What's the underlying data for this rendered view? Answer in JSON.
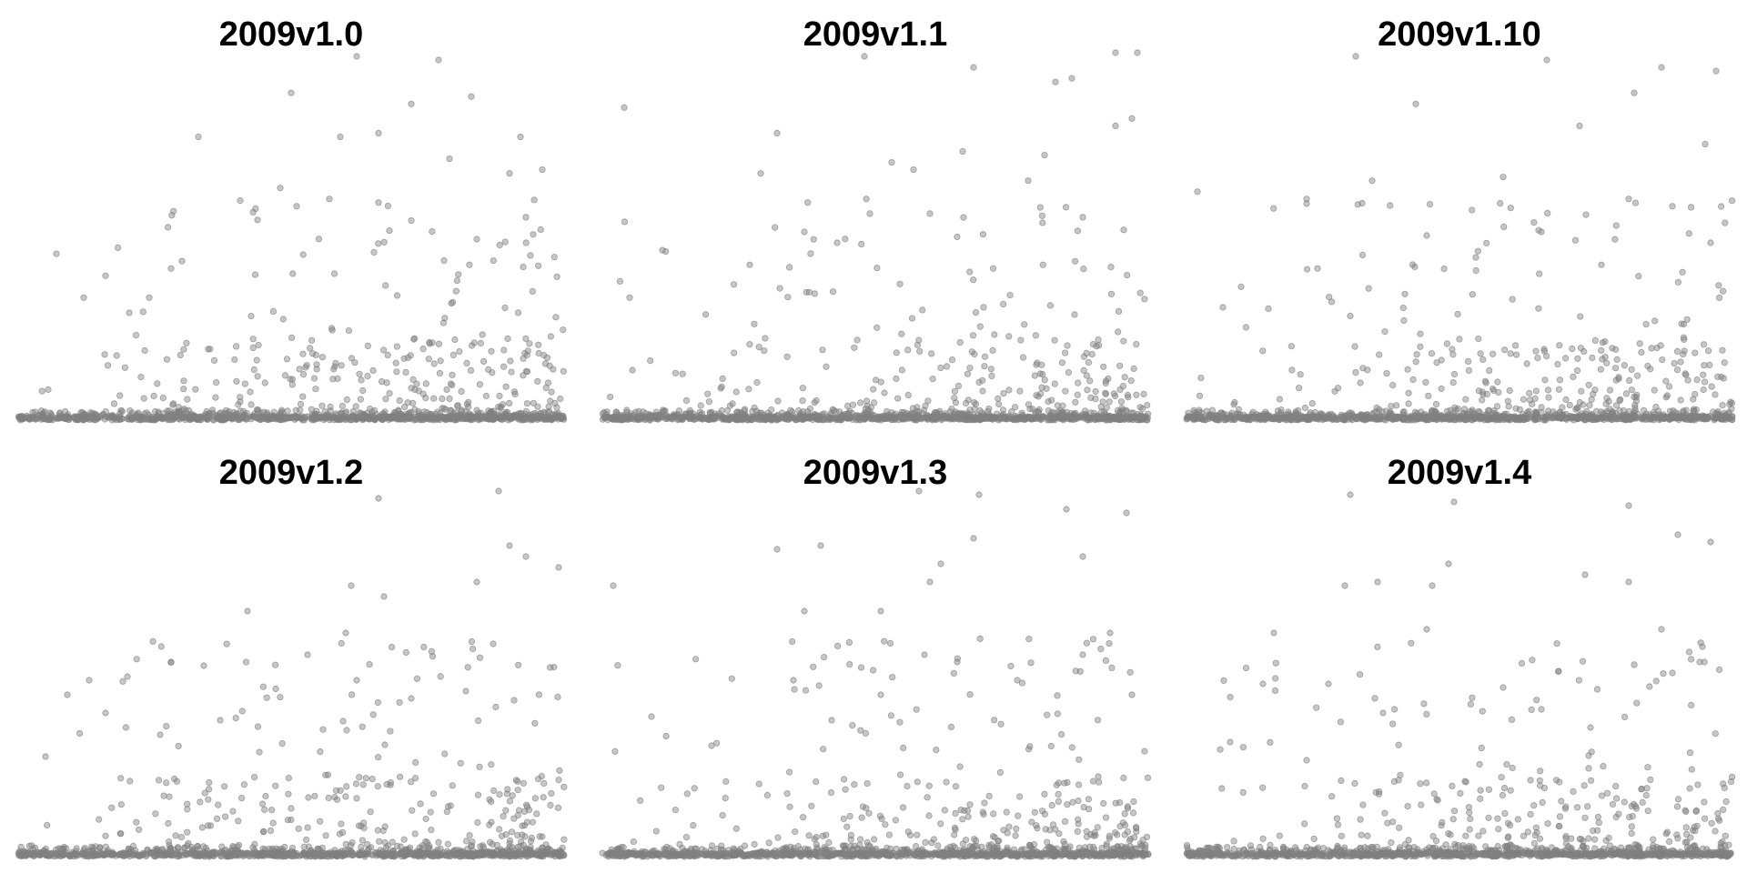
{
  "figure": {
    "point_color": "#808080",
    "point_opacity": 0.45,
    "grid": false,
    "axes_visible": false
  },
  "chart_data": [
    {
      "type": "scatter",
      "title": "2009v1.0",
      "xlim": [
        0,
        100
      ],
      "ylim": [
        0,
        100
      ],
      "outliers": [
        {
          "x": 77,
          "y": 98
        },
        {
          "x": 62,
          "y": 99
        },
        {
          "x": 50,
          "y": 89
        },
        {
          "x": 72,
          "y": 86
        },
        {
          "x": 83,
          "y": 88
        },
        {
          "x": 59,
          "y": 77
        },
        {
          "x": 33,
          "y": 77
        },
        {
          "x": 66,
          "y": 78
        },
        {
          "x": 92,
          "y": 77
        },
        {
          "x": 79,
          "y": 71
        },
        {
          "x": 48,
          "y": 63
        },
        {
          "x": 90,
          "y": 67
        },
        {
          "x": 96,
          "y": 68
        },
        {
          "x": 57,
          "y": 60
        },
        {
          "x": 66,
          "y": 59
        },
        {
          "x": 51,
          "y": 58
        },
        {
          "x": 93,
          "y": 55
        },
        {
          "x": 84,
          "y": 49
        },
        {
          "x": 7,
          "y": 45
        },
        {
          "x": 30,
          "y": 43
        },
        {
          "x": 28,
          "y": 41
        },
        {
          "x": 16,
          "y": 39
        },
        {
          "x": 24,
          "y": 33
        },
        {
          "x": 12,
          "y": 33
        }
      ]
    },
    {
      "type": "scatter",
      "title": "2009v1.1",
      "xlim": [
        0,
        100
      ],
      "ylim": [
        0,
        100
      ],
      "outliers": [
        {
          "x": 98,
          "y": 100
        },
        {
          "x": 94,
          "y": 100
        },
        {
          "x": 48,
          "y": 99
        },
        {
          "x": 68,
          "y": 96
        },
        {
          "x": 86,
          "y": 93
        },
        {
          "x": 83,
          "y": 92
        },
        {
          "x": 4,
          "y": 85
        },
        {
          "x": 32,
          "y": 78
        },
        {
          "x": 94,
          "y": 80
        },
        {
          "x": 97,
          "y": 82
        },
        {
          "x": 53,
          "y": 70
        },
        {
          "x": 57,
          "y": 68
        },
        {
          "x": 81,
          "y": 72
        },
        {
          "x": 66,
          "y": 73
        },
        {
          "x": 29,
          "y": 67
        },
        {
          "x": 78,
          "y": 65
        },
        {
          "x": 60,
          "y": 56
        },
        {
          "x": 49,
          "y": 56
        },
        {
          "x": 37,
          "y": 51
        },
        {
          "x": 11,
          "y": 46
        },
        {
          "x": 27,
          "y": 42
        },
        {
          "x": 43,
          "y": 48
        },
        {
          "x": 5,
          "y": 33
        },
        {
          "x": 88,
          "y": 55
        }
      ]
    },
    {
      "type": "scatter",
      "title": "2009v1.10",
      "xlim": [
        0,
        100
      ],
      "ylim": [
        0,
        100
      ],
      "outliers": [
        {
          "x": 31,
          "y": 99
        },
        {
          "x": 66,
          "y": 98
        },
        {
          "x": 87,
          "y": 96
        },
        {
          "x": 97,
          "y": 95
        },
        {
          "x": 82,
          "y": 89
        },
        {
          "x": 42,
          "y": 86
        },
        {
          "x": 72,
          "y": 80
        },
        {
          "x": 95,
          "y": 75
        },
        {
          "x": 34,
          "y": 65
        },
        {
          "x": 2,
          "y": 62
        },
        {
          "x": 22,
          "y": 60
        },
        {
          "x": 58,
          "y": 66
        },
        {
          "x": 81,
          "y": 60
        },
        {
          "x": 89,
          "y": 58
        },
        {
          "x": 44,
          "y": 50
        },
        {
          "x": 65,
          "y": 51
        },
        {
          "x": 24,
          "y": 41
        },
        {
          "x": 10,
          "y": 36
        },
        {
          "x": 53,
          "y": 44
        },
        {
          "x": 76,
          "y": 42
        },
        {
          "x": 15,
          "y": 30
        },
        {
          "x": 40,
          "y": 34
        },
        {
          "x": 96,
          "y": 48
        },
        {
          "x": 30,
          "y": 28
        }
      ]
    },
    {
      "type": "scatter",
      "title": "2009v1.2",
      "xlim": [
        0,
        100
      ],
      "ylim": [
        0,
        100
      ],
      "outliers": [
        {
          "x": 88,
          "y": 100
        },
        {
          "x": 66,
          "y": 98
        },
        {
          "x": 90,
          "y": 85
        },
        {
          "x": 93,
          "y": 82
        },
        {
          "x": 99,
          "y": 79
        },
        {
          "x": 84,
          "y": 75
        },
        {
          "x": 61,
          "y": 74
        },
        {
          "x": 67,
          "y": 71
        },
        {
          "x": 42,
          "y": 67
        },
        {
          "x": 60,
          "y": 61
        },
        {
          "x": 87,
          "y": 58
        },
        {
          "x": 28,
          "y": 53
        },
        {
          "x": 34,
          "y": 52
        },
        {
          "x": 20,
          "y": 49
        },
        {
          "x": 13,
          "y": 48
        },
        {
          "x": 9,
          "y": 44
        },
        {
          "x": 62,
          "y": 48
        },
        {
          "x": 72,
          "y": 43
        },
        {
          "x": 53,
          "y": 55
        },
        {
          "x": 82,
          "y": 45
        },
        {
          "x": 16,
          "y": 39
        },
        {
          "x": 37,
          "y": 37
        },
        {
          "x": 26,
          "y": 33
        },
        {
          "x": 5,
          "y": 27
        }
      ]
    },
    {
      "type": "scatter",
      "title": "2009v1.3",
      "xlim": [
        0,
        100
      ],
      "ylim": [
        0,
        100
      ],
      "outliers": [
        {
          "x": 58,
          "y": 100
        },
        {
          "x": 69,
          "y": 99
        },
        {
          "x": 85,
          "y": 95
        },
        {
          "x": 96,
          "y": 94
        },
        {
          "x": 68,
          "y": 87
        },
        {
          "x": 40,
          "y": 85
        },
        {
          "x": 32,
          "y": 84
        },
        {
          "x": 88,
          "y": 82
        },
        {
          "x": 62,
          "y": 80
        },
        {
          "x": 60,
          "y": 75
        },
        {
          "x": 37,
          "y": 67
        },
        {
          "x": 51,
          "y": 67
        },
        {
          "x": 2,
          "y": 74
        },
        {
          "x": 93,
          "y": 61
        },
        {
          "x": 59,
          "y": 55
        },
        {
          "x": 65,
          "y": 53
        },
        {
          "x": 35,
          "y": 48
        },
        {
          "x": 76,
          "y": 48
        },
        {
          "x": 51,
          "y": 44
        },
        {
          "x": 88,
          "y": 55
        },
        {
          "x": 97,
          "y": 44
        },
        {
          "x": 9,
          "y": 38
        },
        {
          "x": 20,
          "y": 30
        },
        {
          "x": 42,
          "y": 37
        }
      ]
    },
    {
      "type": "scatter",
      "title": "2009v1.4",
      "xlim": [
        0,
        100
      ],
      "ylim": [
        0,
        100
      ],
      "outliers": [
        {
          "x": 30,
          "y": 99
        },
        {
          "x": 49,
          "y": 97
        },
        {
          "x": 81,
          "y": 96
        },
        {
          "x": 90,
          "y": 88
        },
        {
          "x": 96,
          "y": 86
        },
        {
          "x": 48,
          "y": 80
        },
        {
          "x": 35,
          "y": 75
        },
        {
          "x": 73,
          "y": 77
        },
        {
          "x": 29,
          "y": 74
        },
        {
          "x": 81,
          "y": 75
        },
        {
          "x": 45,
          "y": 74
        },
        {
          "x": 16,
          "y": 61
        },
        {
          "x": 44,
          "y": 62
        },
        {
          "x": 87,
          "y": 62
        },
        {
          "x": 14,
          "y": 47
        },
        {
          "x": 26,
          "y": 47
        },
        {
          "x": 58,
          "y": 46
        },
        {
          "x": 36,
          "y": 39
        },
        {
          "x": 89,
          "y": 50
        },
        {
          "x": 94,
          "y": 53
        },
        {
          "x": 8,
          "y": 31
        },
        {
          "x": 22,
          "y": 26
        },
        {
          "x": 65,
          "y": 40
        },
        {
          "x": 74,
          "y": 35
        }
      ]
    }
  ]
}
